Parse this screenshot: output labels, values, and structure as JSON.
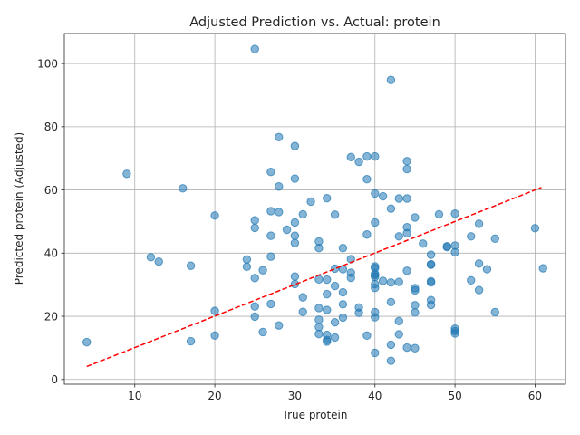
{
  "chart_data": {
    "type": "scatter",
    "title": "Adjusted Prediction vs. Actual: protein",
    "xlabel": "True protein",
    "ylabel": "Predicted protein (Adjusted)",
    "xlim": [
      1.2,
      63.8
    ],
    "ylim": [
      -1.5,
      109.5
    ],
    "xticks": [
      10,
      20,
      30,
      40,
      50,
      60
    ],
    "yticks": [
      0,
      20,
      40,
      60,
      80,
      100
    ],
    "grid": true,
    "point_color": "#1f77b4",
    "point_alpha": 0.55,
    "reference_line": {
      "style": "dashed",
      "color": "#ff0000",
      "x": [
        4,
        60.8
      ],
      "y": [
        4.1,
        60.8
      ]
    },
    "points": [
      [
        25,
        104.6
      ],
      [
        42,
        94.8
      ],
      [
        28,
        76.7
      ],
      [
        30,
        73.9
      ],
      [
        37,
        70.4
      ],
      [
        39,
        70.6
      ],
      [
        40,
        70.6
      ],
      [
        38,
        68.9
      ],
      [
        44,
        69.1
      ],
      [
        44,
        66.6
      ],
      [
        27,
        65.7
      ],
      [
        9,
        65.1
      ],
      [
        30,
        63.6
      ],
      [
        39,
        63.4
      ],
      [
        28,
        61.1
      ],
      [
        16,
        60.5
      ],
      [
        40,
        58.9
      ],
      [
        41,
        58.0
      ],
      [
        43,
        57.3
      ],
      [
        44,
        57.3
      ],
      [
        34,
        57.4
      ],
      [
        32,
        56.3
      ],
      [
        42,
        54.1
      ],
      [
        27,
        53.3
      ],
      [
        28,
        53.0
      ],
      [
        31,
        52.3
      ],
      [
        35,
        52.2
      ],
      [
        20,
        51.9
      ],
      [
        45,
        51.3
      ],
      [
        48,
        52.3
      ],
      [
        50,
        52.5
      ],
      [
        25,
        50.4
      ],
      [
        30,
        49.7
      ],
      [
        40,
        49.7
      ],
      [
        53,
        49.3
      ],
      [
        25,
        48.0
      ],
      [
        29,
        47.4
      ],
      [
        44,
        48.2
      ],
      [
        60,
        47.9
      ],
      [
        44,
        46.3
      ],
      [
        39,
        45.9
      ],
      [
        27,
        45.5
      ],
      [
        30,
        45.5
      ],
      [
        43,
        45.3
      ],
      [
        52,
        45.3
      ],
      [
        55,
        44.6
      ],
      [
        33,
        43.7
      ],
      [
        30,
        43.2
      ],
      [
        46,
        43.0
      ],
      [
        49,
        42.2
      ],
      [
        49,
        41.9
      ],
      [
        50,
        42.4
      ],
      [
        33,
        41.6
      ],
      [
        36,
        41.6
      ],
      [
        50,
        40.3
      ],
      [
        47,
        39.5
      ],
      [
        27,
        38.9
      ],
      [
        12,
        38.7
      ],
      [
        37,
        38.1
      ],
      [
        24,
        38.0
      ],
      [
        13,
        37.3
      ],
      [
        47,
        36.5
      ],
      [
        47,
        36.3
      ],
      [
        53,
        36.7
      ],
      [
        17,
        36.0
      ],
      [
        24,
        35.7
      ],
      [
        40,
        35.8
      ],
      [
        40,
        35.3
      ],
      [
        35,
        35.1
      ],
      [
        36,
        34.9
      ],
      [
        54,
        34.9
      ],
      [
        61,
        35.2
      ],
      [
        26,
        34.6
      ],
      [
        44,
        34.4
      ],
      [
        37,
        33.8
      ],
      [
        40,
        33.5
      ],
      [
        40,
        33.0
      ],
      [
        40,
        32.5
      ],
      [
        30,
        32.6
      ],
      [
        25,
        32.1
      ],
      [
        37,
        32.2
      ],
      [
        33,
        31.7
      ],
      [
        34,
        31.6
      ],
      [
        41,
        31.2
      ],
      [
        42,
        30.7
      ],
      [
        43,
        30.9
      ],
      [
        47,
        31.1
      ],
      [
        47,
        30.7
      ],
      [
        52,
        31.4
      ],
      [
        30,
        30.2
      ],
      [
        40,
        30.2
      ],
      [
        35,
        29.6
      ],
      [
        40,
        29.0
      ],
      [
        45,
        28.9
      ],
      [
        45,
        28.2
      ],
      [
        53,
        28.3
      ],
      [
        36,
        27.6
      ],
      [
        34,
        27.0
      ],
      [
        31,
        26.0
      ],
      [
        47,
        25.1
      ],
      [
        42,
        24.5
      ],
      [
        27,
        23.9
      ],
      [
        36,
        23.8
      ],
      [
        47,
        23.6
      ],
      [
        45,
        23.5
      ],
      [
        25,
        23.1
      ],
      [
        33,
        22.6
      ],
      [
        38,
        22.8
      ],
      [
        34,
        22.0
      ],
      [
        20,
        21.7
      ],
      [
        31,
        21.4
      ],
      [
        38,
        21.1
      ],
      [
        40,
        21.3
      ],
      [
        45,
        21.2
      ],
      [
        55,
        21.3
      ],
      [
        25,
        19.9
      ],
      [
        36,
        19.6
      ],
      [
        40,
        19.7
      ],
      [
        33,
        18.9
      ],
      [
        35,
        18.1
      ],
      [
        43,
        18.5
      ],
      [
        28,
        17.1
      ],
      [
        33,
        16.6
      ],
      [
        50,
        16.1
      ],
      [
        50,
        15.3
      ],
      [
        50,
        14.6
      ],
      [
        26,
        15.0
      ],
      [
        33,
        14.4
      ],
      [
        34,
        14.1
      ],
      [
        43,
        14.3
      ],
      [
        20,
        13.9
      ],
      [
        39,
        13.9
      ],
      [
        35,
        13.3
      ],
      [
        34,
        12.5
      ],
      [
        34,
        12.0
      ],
      [
        17,
        12.1
      ],
      [
        4,
        11.8
      ],
      [
        42,
        11.0
      ],
      [
        44,
        10.1
      ],
      [
        45,
        9.9
      ],
      [
        40,
        8.4
      ],
      [
        42,
        5.9
      ]
    ]
  }
}
